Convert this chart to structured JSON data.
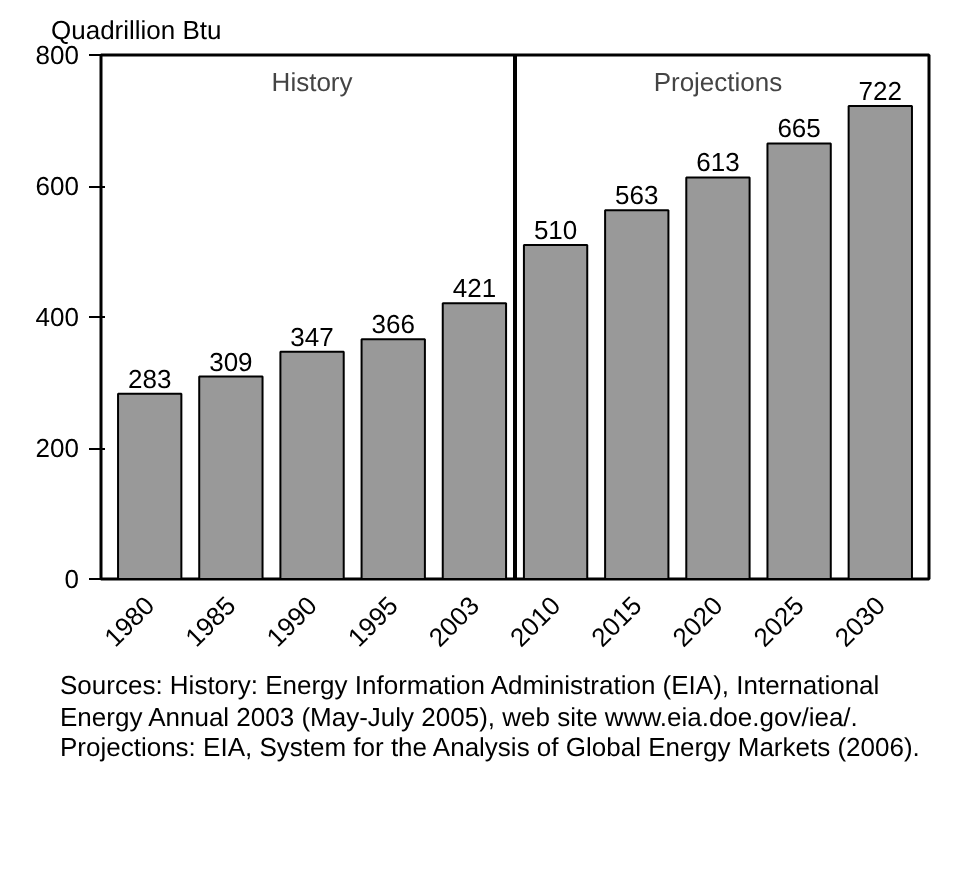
{
  "chart_data": {
    "type": "bar",
    "ylabel": "Quadrillion Btu",
    "categories": [
      "1980",
      "1985",
      "1990",
      "1995",
      "2003",
      "2010",
      "2015",
      "2020",
      "2025",
      "2030"
    ],
    "values": [
      283,
      309,
      347,
      366,
      421,
      510,
      563,
      613,
      665,
      722
    ],
    "color": "#999999",
    "ylim": [
      0,
      800
    ],
    "yticks": [
      0,
      200,
      400,
      600,
      800
    ],
    "grid": false,
    "data_labels": true,
    "annotations": [
      "History",
      "Projections",
      "Sources: History: Energy Information Administration (EIA), International Energy Annual 2003 (May-July 2005), web site www.eia.doe.gov/iea/. Projections: EIA, System for the Analysis of Global Energy Markets (2006)."
    ]
  }
}
